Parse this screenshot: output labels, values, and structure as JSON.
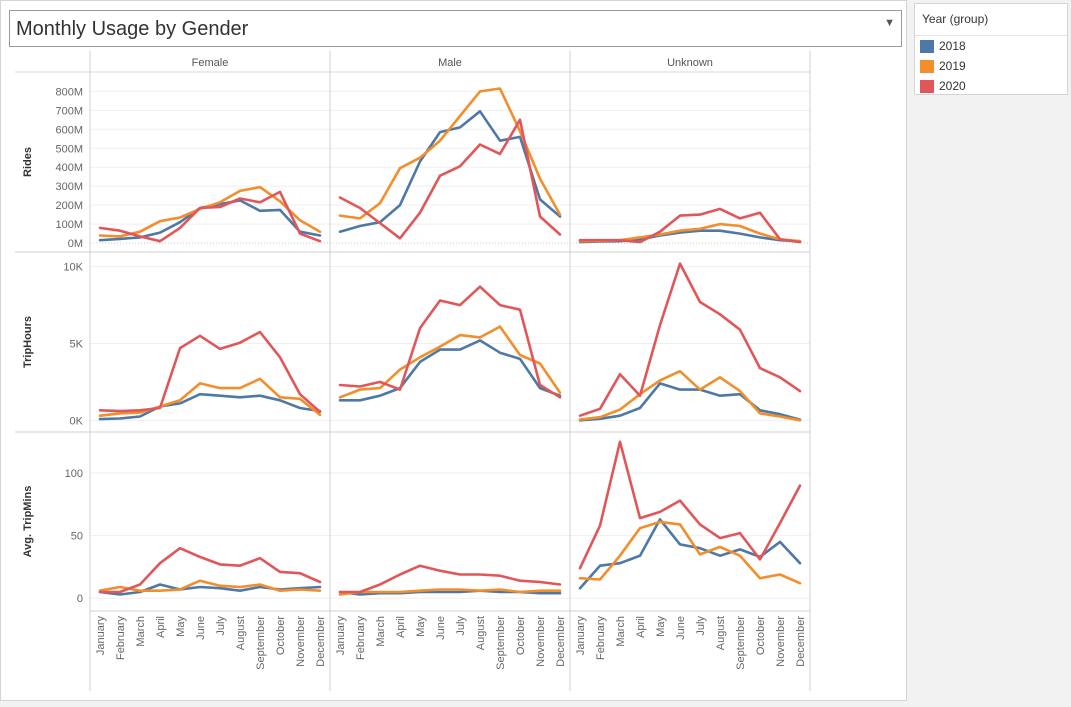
{
  "title": "Monthly Usage by Gender",
  "dropdown_icon": "caret-down-icon",
  "legend": {
    "title": "Year (group)",
    "items": [
      {
        "label": "2018",
        "color": "#4e79a7"
      },
      {
        "label": "2019",
        "color": "#f28e2b"
      },
      {
        "label": "2020",
        "color": "#e15759"
      }
    ]
  },
  "chart_data": {
    "type": "line",
    "columns": [
      "Female",
      "Male",
      "Unknown"
    ],
    "categories": [
      "January",
      "February",
      "March",
      "April",
      "May",
      "June",
      "July",
      "August",
      "September",
      "October",
      "November",
      "December"
    ],
    "rows": [
      {
        "label": "Rides",
        "tick_values": [
          0,
          100,
          200,
          300,
          400,
          500,
          600,
          700,
          800
        ],
        "tick_labels": [
          "0M",
          "100M",
          "200M",
          "300M",
          "400M",
          "500M",
          "600M",
          "700M",
          "800M"
        ],
        "ylim": [
          -5,
          860
        ],
        "data": {
          "Female": {
            "2018": [
              15,
              22,
              30,
              55,
              110,
              185,
              205,
              225,
              170,
              175,
              60,
              40
            ],
            "2019": [
              40,
              35,
              60,
              115,
              135,
              180,
              215,
              275,
              295,
              220,
              120,
              60
            ],
            "2020": [
              80,
              65,
              35,
              10,
              80,
              185,
              190,
              235,
              215,
              270,
              50,
              10
            ]
          },
          "Male": {
            "2018": [
              60,
              90,
              110,
              200,
              430,
              585,
              610,
              695,
              540,
              560,
              230,
              140
            ],
            "2019": [
              145,
              130,
              210,
              395,
              450,
              540,
              670,
              800,
              815,
              590,
              340,
              150
            ],
            "2020": [
              240,
              185,
              105,
              25,
              160,
              355,
              405,
              520,
              470,
              650,
              140,
              45
            ]
          },
          "Unknown": {
            "2018": [
              5,
              8,
              10,
              20,
              40,
              55,
              65,
              65,
              50,
              30,
              15,
              10
            ],
            "2019": [
              10,
              12,
              15,
              30,
              45,
              65,
              75,
              100,
              90,
              50,
              20,
              10
            ],
            "2020": [
              15,
              15,
              15,
              5,
              60,
              145,
              150,
              180,
              130,
              160,
              20,
              5
            ]
          }
        }
      },
      {
        "label": "TripHours",
        "tick_values": [
          0,
          5000,
          10000
        ],
        "tick_labels": [
          "0K",
          "5K",
          "10K"
        ],
        "ylim": [
          -500,
          10500
        ],
        "data": {
          "Female": {
            "2018": [
              80,
              120,
              250,
              900,
              1100,
              1700,
              1600,
              1500,
              1600,
              1300,
              800,
              600
            ],
            "2019": [
              300,
              450,
              500,
              900,
              1300,
              2400,
              2100,
              2100,
              2700,
              1500,
              1400,
              350
            ],
            "2020": [
              650,
              600,
              650,
              800,
              4700,
              5500,
              4650,
              5050,
              5750,
              4100,
              1700,
              550
            ]
          },
          "Male": {
            "2018": [
              1300,
              1300,
              1600,
              2100,
              3800,
              4600,
              4600,
              5200,
              4400,
              4000,
              2100,
              1600
            ],
            "2019": [
              1500,
              2000,
              2100,
              3300,
              4100,
              4800,
              5550,
              5400,
              6100,
              4250,
              3700,
              1800
            ],
            "2020": [
              2300,
              2200,
              2500,
              2000,
              6000,
              7800,
              7500,
              8700,
              7500,
              7200,
              2300,
              1500
            ]
          },
          "Unknown": {
            "2018": [
              0,
              100,
              300,
              800,
              2400,
              2000,
              2000,
              1600,
              1700,
              650,
              400,
              50
            ],
            "2019": [
              50,
              200,
              700,
              1700,
              2600,
              3200,
              2000,
              2800,
              1900,
              450,
              250,
              0
            ],
            "2020": [
              300,
              750,
              3000,
              1600,
              6200,
              10200,
              7700,
              6900,
              5900,
              3400,
              2800,
              1900
            ]
          }
        }
      },
      {
        "label": "Avg. TripMins",
        "tick_values": [
          0,
          50,
          100
        ],
        "tick_labels": [
          "0",
          "50",
          "100"
        ],
        "ylim": [
          -7,
          128
        ],
        "data": {
          "Female": {
            "2018": [
              5,
              3,
              5,
              11,
              7,
              9,
              8,
              6,
              9,
              7,
              8,
              9
            ],
            "2019": [
              6,
              9,
              6,
              6,
              7,
              14,
              10,
              9,
              11,
              6,
              7,
              6
            ],
            "2020": [
              5,
              5,
              11,
              28,
              40,
              33,
              27,
              26,
              32,
              21,
              20,
              13
            ]
          },
          "Male": {
            "2018": [
              5,
              3,
              4,
              4,
              5,
              5,
              5,
              6,
              5,
              5,
              4,
              4
            ],
            "2019": [
              3,
              5,
              5,
              5,
              6,
              7,
              7,
              6,
              7,
              5,
              6,
              6
            ],
            "2020": [
              5,
              5,
              11,
              19,
              26,
              22,
              19,
              19,
              18,
              14,
              13,
              11
            ]
          },
          "Unknown": {
            "2018": [
              8,
              26,
              28,
              34,
              63,
              43,
              40,
              34,
              39,
              33,
              45,
              28
            ],
            "2019": [
              16,
              15,
              34,
              56,
              61,
              59,
              35,
              41,
              34,
              16,
              19,
              12
            ],
            "2020": [
              24,
              58,
              125,
              64,
              69,
              78,
              59,
              48,
              52,
              31,
              60,
              90
            ]
          }
        }
      }
    ],
    "series": [
      "2018",
      "2019",
      "2020"
    ],
    "colors": {
      "2018": "#4e79a7",
      "2019": "#f28e2b",
      "2020": "#e15759"
    },
    "grid": true,
    "legend_position": "right"
  }
}
